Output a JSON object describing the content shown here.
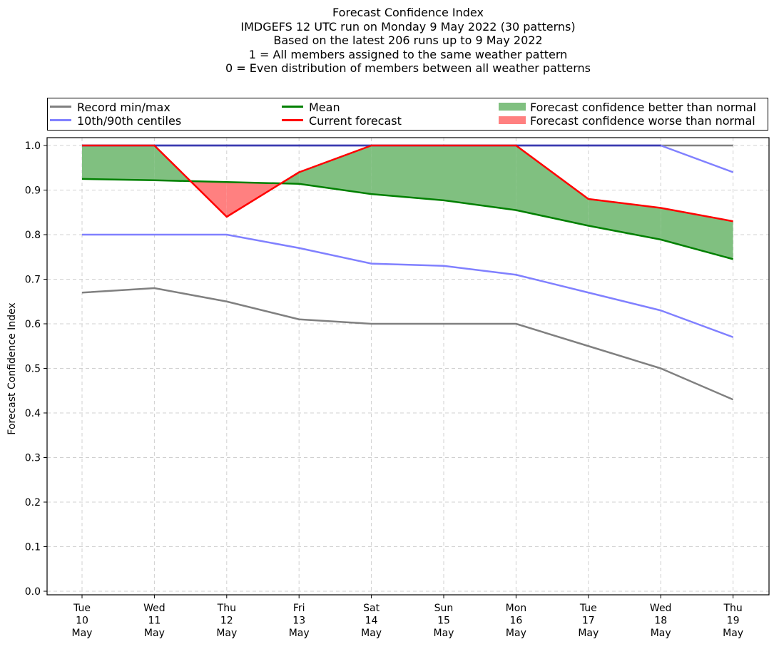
{
  "title_lines": [
    "Forecast Confidence Index",
    "IMDGEFS 12 UTC run on Monday 9 May 2022 (30 patterns)",
    "Based on the latest 206 runs up to 9 May 2022",
    "1 = All members assigned to the same weather pattern",
    "0 = Even distribution of members between all weather patterns"
  ],
  "legend": {
    "record": "Record min/max",
    "centiles": "10th/90th centiles",
    "mean": "Mean",
    "current": "Current forecast",
    "better": "Forecast confidence better than normal",
    "worse": "Forecast confidence worse than normal"
  },
  "colors": {
    "record": "#808080",
    "centiles": "#8080ff",
    "top_line": "#3a3ab0",
    "mean": "#008000",
    "current": "#ff0000",
    "better": "#80c080",
    "worse": "#ff8080",
    "grid": "#d0d0d0"
  },
  "chart_data": {
    "type": "line",
    "ylabel": "Forecast Confidence Index",
    "xlabel": "",
    "ylim": [
      0.0,
      1.0
    ],
    "yticks": [
      "0.0",
      "0.1",
      "0.2",
      "0.3",
      "0.4",
      "0.5",
      "0.6",
      "0.7",
      "0.8",
      "0.9",
      "1.0"
    ],
    "grid": true,
    "legend_position": "top",
    "categories": [
      [
        "Tue",
        "10",
        "May"
      ],
      [
        "Wed",
        "11",
        "May"
      ],
      [
        "Thu",
        "12",
        "May"
      ],
      [
        "Fri",
        "13",
        "May"
      ],
      [
        "Sat",
        "14",
        "May"
      ],
      [
        "Sun",
        "15",
        "May"
      ],
      [
        "Mon",
        "16",
        "May"
      ],
      [
        "Tue",
        "17",
        "May"
      ],
      [
        "Wed",
        "18",
        "May"
      ],
      [
        "Thu",
        "19",
        "May"
      ]
    ],
    "series": [
      {
        "name": "Record min/max",
        "role": "record_min",
        "values": [
          0.67,
          0.68,
          0.65,
          0.61,
          0.6,
          0.6,
          0.6,
          0.55,
          0.5,
          0.43
        ]
      },
      {
        "name": "Record min/max",
        "role": "record_max",
        "values": [
          1.0,
          1.0,
          1.0,
          1.0,
          1.0,
          1.0,
          1.0,
          1.0,
          1.0,
          1.0
        ]
      },
      {
        "name": "10th/90th centiles",
        "role": "p10",
        "values": [
          0.8,
          0.8,
          0.8,
          0.77,
          0.735,
          0.73,
          0.71,
          0.67,
          0.63,
          0.57
        ]
      },
      {
        "name": "10th/90th centiles",
        "role": "p90",
        "values": [
          1.0,
          1.0,
          1.0,
          1.0,
          1.0,
          1.0,
          1.0,
          1.0,
          1.0,
          0.94
        ]
      },
      {
        "name": "Mean",
        "role": "mean",
        "values": [
          0.925,
          0.922,
          0.918,
          0.914,
          0.891,
          0.877,
          0.855,
          0.82,
          0.789,
          0.745
        ]
      },
      {
        "name": "Current forecast",
        "role": "current",
        "values": [
          1.0,
          1.0,
          0.84,
          0.94,
          1.0,
          1.0,
          1.0,
          0.88,
          0.86,
          0.83
        ]
      }
    ]
  }
}
